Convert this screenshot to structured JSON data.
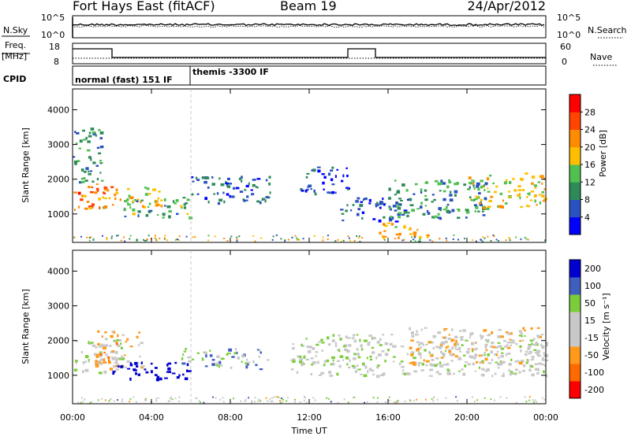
{
  "header": {
    "station": "Fort Hays East (fitACF)",
    "beam": "Beam 19",
    "date": "24/Apr/2012"
  },
  "panels": {
    "noise": {
      "left_label": "N.Sky",
      "left_ticks": [
        "10^5",
        "10^0"
      ],
      "right_ticks": [
        "10^5",
        "10^0"
      ],
      "right_label": "N.Search"
    },
    "freq": {
      "left_label_line1": "Freq.",
      "left_label_line2": "[MHz]",
      "left_ticks": [
        "18",
        "8"
      ],
      "right_ticks": [
        "60",
        "0"
      ],
      "right_label": "Nave"
    },
    "cpid": {
      "label": "CPID",
      "modes": [
        "normal (fast) 151 IF",
        "themis -3300 IF"
      ]
    }
  },
  "colors": {
    "power": [
      "#0000ff",
      "#2a52be",
      "#2e8b57",
      "#50c050",
      "#ffbf00",
      "#ff8c00",
      "#ff4500",
      "#ff0000"
    ],
    "velocity": [
      "#ff0000",
      "#ff6a00",
      "#ff9a1a",
      "#c8c8c8",
      "#c8c8c8",
      "#7ccd3c",
      "#3f5fbf",
      "#0000d0"
    ]
  },
  "chart_data": [
    {
      "type": "heatmap",
      "name": "power",
      "xlabel": "",
      "ylabel": "Slant Range [km]",
      "ylim": [
        180,
        4600
      ],
      "yticks": [
        "1000",
        "2000",
        "3000",
        "4000"
      ],
      "ytick_values": [
        1000,
        2000,
        3000,
        4000
      ],
      "colorbar": {
        "label": "Power [dB]",
        "range": [
          0,
          32
        ],
        "ticks": [
          "4",
          "8",
          "12",
          "16",
          "20",
          "24",
          "28"
        ],
        "tick_values": [
          4,
          8,
          12,
          16,
          20,
          24,
          28
        ]
      },
      "echo_regions": [
        {
          "t0": 0.0,
          "t1": 2.0,
          "r0": 1100,
          "r1": 1900,
          "power": 24
        },
        {
          "t0": 1.5,
          "t1": 4.5,
          "r0": 1200,
          "r1": 1800,
          "power": 18
        },
        {
          "t0": 2.5,
          "t1": 6.0,
          "r0": 900,
          "r1": 1500,
          "power": 12
        },
        {
          "t0": 0.0,
          "t1": 1.5,
          "r0": 1900,
          "r1": 3500,
          "power": 10
        },
        {
          "t0": 6.0,
          "t1": 10.0,
          "r0": 1300,
          "r1": 2100,
          "power": 6
        },
        {
          "t0": 11.5,
          "t1": 14.0,
          "r0": 1600,
          "r1": 2400,
          "power": 5
        },
        {
          "t0": 13.5,
          "t1": 17.0,
          "r0": 800,
          "r1": 1500,
          "power": 6
        },
        {
          "t0": 15.5,
          "t1": 18.0,
          "r0": 300,
          "r1": 800,
          "power": 20
        },
        {
          "t0": 16.0,
          "t1": 21.0,
          "r0": 900,
          "r1": 2000,
          "power": 10
        },
        {
          "t0": 20.0,
          "t1": 24.0,
          "r0": 1200,
          "r1": 2200,
          "power": 18
        }
      ]
    },
    {
      "type": "heatmap",
      "name": "velocity",
      "xlabel": "Time UT",
      "ylabel": "Slant Range [km]",
      "ylim": [
        180,
        4600
      ],
      "yticks": [
        "1000",
        "2000",
        "3000",
        "4000"
      ],
      "ytick_values": [
        1000,
        2000,
        3000,
        4000
      ],
      "xticks": [
        "00:00",
        "04:00",
        "08:00",
        "12:00",
        "16:00",
        "20:00",
        "00:00"
      ],
      "xtick_values": [
        0,
        4,
        8,
        12,
        16,
        20,
        24
      ],
      "xlim": [
        0,
        24
      ],
      "colorbar": {
        "label": "Velocity [m s⁻¹]",
        "range": [
          -250,
          250
        ],
        "ticks": [
          "200",
          "100",
          "50",
          "15",
          "-15",
          "-50",
          "-100",
          "-200"
        ]
      },
      "echo_regions": [
        {
          "t0": 0.0,
          "t1": 2.5,
          "r0": 1100,
          "r1": 2100,
          "velocity": 0
        },
        {
          "t0": 1.0,
          "t1": 3.5,
          "r0": 1200,
          "r1": 2300,
          "velocity": -60
        },
        {
          "t0": 2.0,
          "t1": 6.0,
          "r0": 900,
          "r1": 1400,
          "velocity": 220
        },
        {
          "t0": 5.5,
          "t1": 10.0,
          "r0": 1200,
          "r1": 1800,
          "velocity": 30
        },
        {
          "t0": 11.0,
          "t1": 24.0,
          "r0": 1000,
          "r1": 2200,
          "velocity": 0
        },
        {
          "t0": 17.0,
          "t1": 24.0,
          "r0": 1300,
          "r1": 2400,
          "velocity": -40
        }
      ]
    }
  ]
}
